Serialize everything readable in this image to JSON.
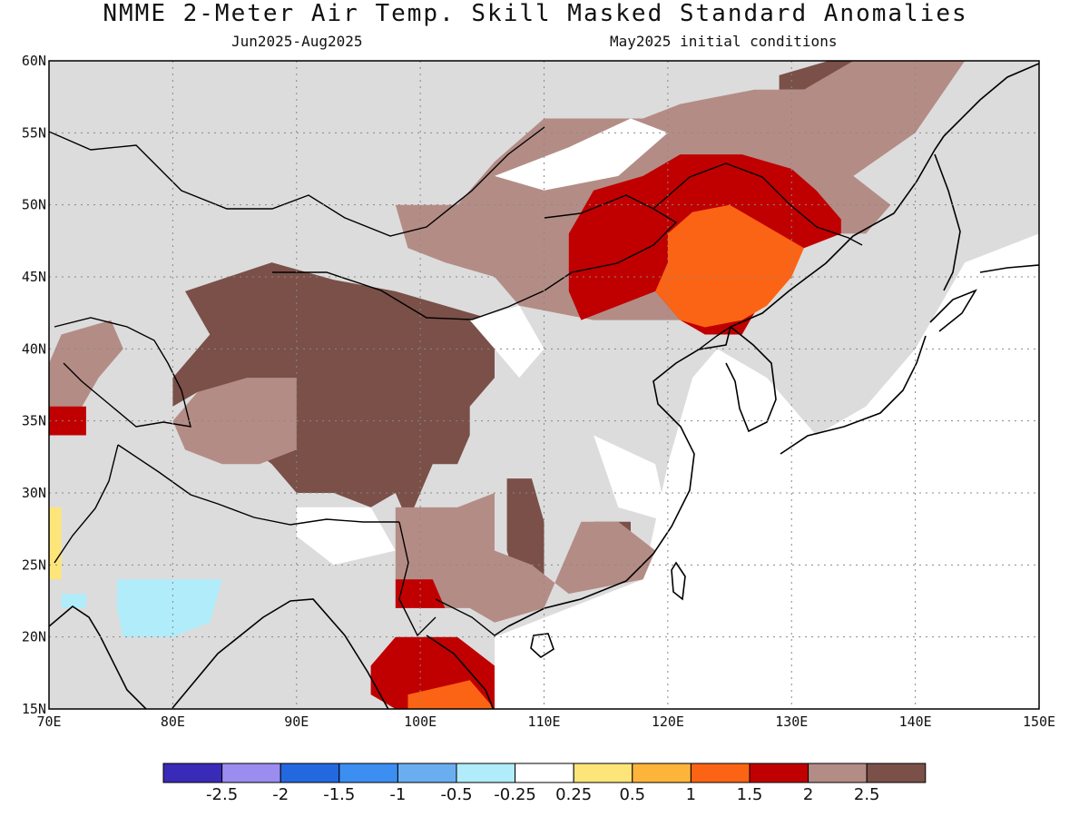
{
  "title": "NMME 2-Meter Air Temp. Skill Masked Standard Anomalies",
  "subtitle_left": "Jun2025-Aug2025",
  "subtitle_right": "May2025 initial conditions",
  "lon_ticks": [
    "70E",
    "80E",
    "90E",
    "100E",
    "110E",
    "120E",
    "130E",
    "140E",
    "150E"
  ],
  "lat_ticks": [
    "15N",
    "20N",
    "25N",
    "30N",
    "35N",
    "40N",
    "45N",
    "50N",
    "55N",
    "60N"
  ],
  "colorbar": {
    "colors": [
      "#3a2ab8",
      "#9b8cf0",
      "#2468e0",
      "#3c8ef0",
      "#6aaef0",
      "#b0ecfa",
      "#ffffff",
      "#fde57a",
      "#fdb43a",
      "#fb6414",
      "#c00000",
      "#b48c86",
      "#7a5048"
    ],
    "labels": [
      "-2.5",
      "-2",
      "-1.5",
      "-1",
      "-0.5",
      "-0.25",
      "0.25",
      "0.5",
      "1",
      "1.5",
      "2",
      "2.5"
    ]
  },
  "colors": {
    "skill_mask": "#dcdcdc",
    "strong_warm": "#7a5048",
    "moderate_warm": "#b48c86",
    "red": "#c00000",
    "orange": "#fb6414",
    "light_orange": "#fdb43a",
    "yellow": "#fde57a",
    "light_blue": "#b0ecfa"
  },
  "chart_data": {
    "type": "heatmap",
    "lon_range": [
      70,
      150
    ],
    "lat_range": [
      15,
      60
    ],
    "regions": [
      {
        "color": "skill_mask",
        "lonlat": [
          [
            70,
            60
          ],
          [
            150,
            60
          ],
          [
            150,
            48
          ],
          [
            144,
            46
          ],
          [
            140,
            40
          ],
          [
            136,
            36
          ],
          [
            132,
            34
          ],
          [
            128,
            38
          ],
          [
            124,
            40
          ],
          [
            122,
            38
          ],
          [
            120,
            32
          ],
          [
            118,
            24
          ],
          [
            112,
            22
          ],
          [
            106,
            20
          ],
          [
            106,
            15
          ],
          [
            70,
            15
          ]
        ]
      },
      {
        "color": "strong_warm",
        "lonlat": [
          [
            81,
            44
          ],
          [
            88,
            46
          ],
          [
            93,
            44.8
          ],
          [
            98,
            44
          ],
          [
            102,
            43
          ],
          [
            106,
            42
          ],
          [
            106,
            38
          ],
          [
            104,
            36
          ],
          [
            104,
            34
          ],
          [
            103,
            32
          ],
          [
            101,
            32
          ],
          [
            99,
            28
          ],
          [
            98,
            30
          ],
          [
            96,
            29
          ],
          [
            93,
            30
          ],
          [
            90,
            30
          ],
          [
            88,
            32
          ],
          [
            85,
            34
          ],
          [
            82,
            37
          ],
          [
            80,
            36
          ],
          [
            80,
            38
          ],
          [
            83,
            41
          ]
        ]
      },
      {
        "color": "strong_warm",
        "lonlat": [
          [
            107,
            31
          ],
          [
            109,
            31
          ],
          [
            110,
            28
          ],
          [
            110,
            23
          ],
          [
            108,
            23
          ],
          [
            107,
            26
          ]
        ]
      },
      {
        "color": "strong_warm",
        "lonlat": [
          [
            114,
            28
          ],
          [
            117,
            28
          ],
          [
            117,
            25
          ],
          [
            114,
            25
          ]
        ]
      },
      {
        "color": "strong_warm",
        "lonlat": [
          [
            129,
            58
          ],
          [
            134,
            58
          ],
          [
            137,
            60
          ],
          [
            133,
            60
          ],
          [
            129,
            59
          ]
        ]
      },
      {
        "color": "moderate_warm",
        "lonlat": [
          [
            98,
            50
          ],
          [
            103,
            50
          ],
          [
            106,
            53
          ],
          [
            110,
            56
          ],
          [
            118,
            56
          ],
          [
            121,
            57
          ],
          [
            127,
            58
          ],
          [
            131,
            58
          ],
          [
            135,
            60
          ],
          [
            144,
            60
          ],
          [
            140,
            55
          ],
          [
            135,
            52
          ],
          [
            138,
            50
          ],
          [
            136,
            48
          ],
          [
            133,
            48
          ],
          [
            131,
            47
          ],
          [
            128,
            45
          ],
          [
            126,
            42
          ],
          [
            120,
            42
          ],
          [
            114,
            42
          ],
          [
            108,
            43
          ],
          [
            106,
            45
          ],
          [
            102,
            46
          ],
          [
            99,
            47
          ]
        ]
      },
      {
        "color": "moderate_warm",
        "lonlat": [
          [
            86,
            38
          ],
          [
            90,
            38
          ],
          [
            90,
            33
          ],
          [
            87,
            32
          ],
          [
            84,
            32
          ],
          [
            81,
            33
          ],
          [
            80,
            35
          ],
          [
            82,
            37
          ]
        ]
      },
      {
        "color": "moderate_warm",
        "lonlat": [
          [
            98,
            29
          ],
          [
            103,
            29
          ],
          [
            106,
            30
          ],
          [
            106,
            26
          ],
          [
            109,
            25
          ],
          [
            112,
            23
          ],
          [
            118,
            24
          ],
          [
            119,
            26
          ],
          [
            116,
            28
          ],
          [
            113,
            28
          ],
          [
            110,
            22
          ],
          [
            106,
            21
          ],
          [
            104,
            22
          ],
          [
            100,
            22
          ],
          [
            98,
            24
          ]
        ]
      },
      {
        "color": "moderate_warm",
        "lonlat": [
          [
            71,
            41
          ],
          [
            75,
            42
          ],
          [
            76,
            40
          ],
          [
            74,
            38
          ],
          [
            72,
            35
          ],
          [
            70,
            35
          ],
          [
            70,
            39
          ]
        ]
      },
      {
        "color": "red",
        "lonlat": [
          [
            112,
            48
          ],
          [
            114,
            51
          ],
          [
            118,
            52
          ],
          [
            121,
            53.5
          ],
          [
            126,
            53.5
          ],
          [
            130,
            52.5
          ],
          [
            132,
            51
          ],
          [
            134,
            49
          ],
          [
            134,
            48
          ],
          [
            131,
            47
          ],
          [
            128,
            44
          ],
          [
            126,
            41
          ],
          [
            123,
            41
          ],
          [
            121,
            42
          ],
          [
            119,
            44
          ],
          [
            113,
            42
          ],
          [
            112,
            44
          ],
          [
            112,
            46
          ]
        ]
      },
      {
        "color": "red",
        "lonlat": [
          [
            98,
            20
          ],
          [
            103,
            20
          ],
          [
            106,
            18
          ],
          [
            106,
            15
          ],
          [
            98,
            15
          ],
          [
            96,
            16
          ],
          [
            96,
            18
          ]
        ]
      },
      {
        "color": "red",
        "lonlat": [
          [
            98,
            24
          ],
          [
            101,
            24
          ],
          [
            102,
            22
          ],
          [
            98,
            22
          ]
        ]
      },
      {
        "color": "red",
        "lonlat": [
          [
            70,
            36
          ],
          [
            73,
            36
          ],
          [
            73,
            34
          ],
          [
            70,
            34
          ]
        ]
      },
      {
        "color": "orange",
        "lonlat": [
          [
            120,
            48
          ],
          [
            122,
            49.5
          ],
          [
            125,
            50
          ],
          [
            127,
            49
          ],
          [
            129,
            48
          ],
          [
            131,
            47
          ],
          [
            130,
            45
          ],
          [
            128,
            43
          ],
          [
            126,
            42
          ],
          [
            123,
            41.5
          ],
          [
            121,
            42
          ],
          [
            119,
            44
          ],
          [
            120,
            46
          ]
        ]
      },
      {
        "color": "orange",
        "lonlat": [
          [
            99,
            16
          ],
          [
            104,
            17
          ],
          [
            106,
            15
          ],
          [
            99,
            15
          ]
        ]
      },
      {
        "color": "yellow",
        "lonlat": [
          [
            70,
            29
          ],
          [
            71,
            29
          ],
          [
            71,
            24
          ],
          [
            70,
            24
          ]
        ]
      },
      {
        "color": "light_blue",
        "lonlat": [
          [
            75.5,
            24
          ],
          [
            84,
            24
          ],
          [
            83,
            21
          ],
          [
            80,
            20
          ],
          [
            76,
            20
          ],
          [
            75.5,
            22
          ]
        ]
      },
      {
        "color": "light_blue",
        "lonlat": [
          [
            71,
            23
          ],
          [
            73,
            23
          ],
          [
            73,
            22
          ],
          [
            71,
            22
          ]
        ]
      }
    ],
    "white_regions": [
      {
        "lonlat": [
          [
            106,
            52
          ],
          [
            112,
            54
          ],
          [
            117,
            56
          ],
          [
            120,
            55
          ],
          [
            116,
            52
          ],
          [
            110,
            51
          ]
        ]
      },
      {
        "lonlat": [
          [
            104,
            42
          ],
          [
            108,
            43
          ],
          [
            110,
            40
          ],
          [
            108,
            38
          ],
          [
            106,
            40
          ]
        ]
      },
      {
        "lonlat": [
          [
            114,
            34
          ],
          [
            119,
            32
          ],
          [
            120,
            28
          ],
          [
            116,
            29
          ]
        ]
      },
      {
        "lonlat": [
          [
            90,
            29
          ],
          [
            96,
            29
          ],
          [
            98,
            26
          ],
          [
            93,
            25
          ],
          [
            90,
            27
          ]
        ]
      }
    ]
  }
}
